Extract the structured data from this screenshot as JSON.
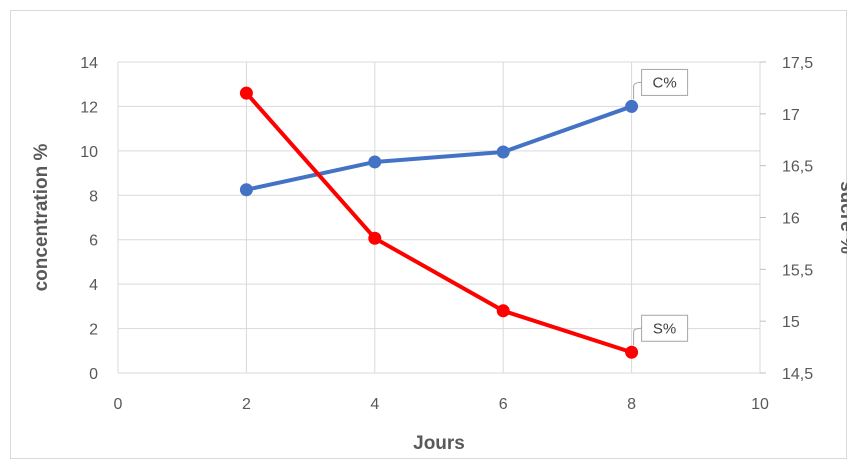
{
  "chart_data": {
    "type": "line",
    "title": "",
    "xlabel": "Jours",
    "ylabel": "concentration %",
    "y2label": "sucre %",
    "xlim": [
      0,
      10
    ],
    "ylim": [
      0,
      14
    ],
    "y2lim": [
      14.5,
      17.5
    ],
    "x_ticks": [
      "0",
      "2",
      "4",
      "6",
      "8",
      "10"
    ],
    "y_ticks": [
      "0",
      "2",
      "4",
      "6",
      "8",
      "10",
      "12",
      "14"
    ],
    "y2_ticks": [
      "14,5",
      "15",
      "15,5",
      "16",
      "16,5",
      "17",
      "17,5"
    ],
    "grid": true,
    "legend": "none",
    "series": [
      {
        "name": "C%",
        "axis": "left",
        "color": "#4472C4",
        "x": [
          2,
          4,
          6,
          8
        ],
        "y": [
          8.25,
          9.5,
          9.95,
          12.0
        ]
      },
      {
        "name": "S%",
        "axis": "right",
        "color": "#FF0000",
        "x": [
          2,
          4,
          6,
          8
        ],
        "y": [
          17.2,
          15.8,
          15.1,
          14.7
        ]
      }
    ]
  }
}
